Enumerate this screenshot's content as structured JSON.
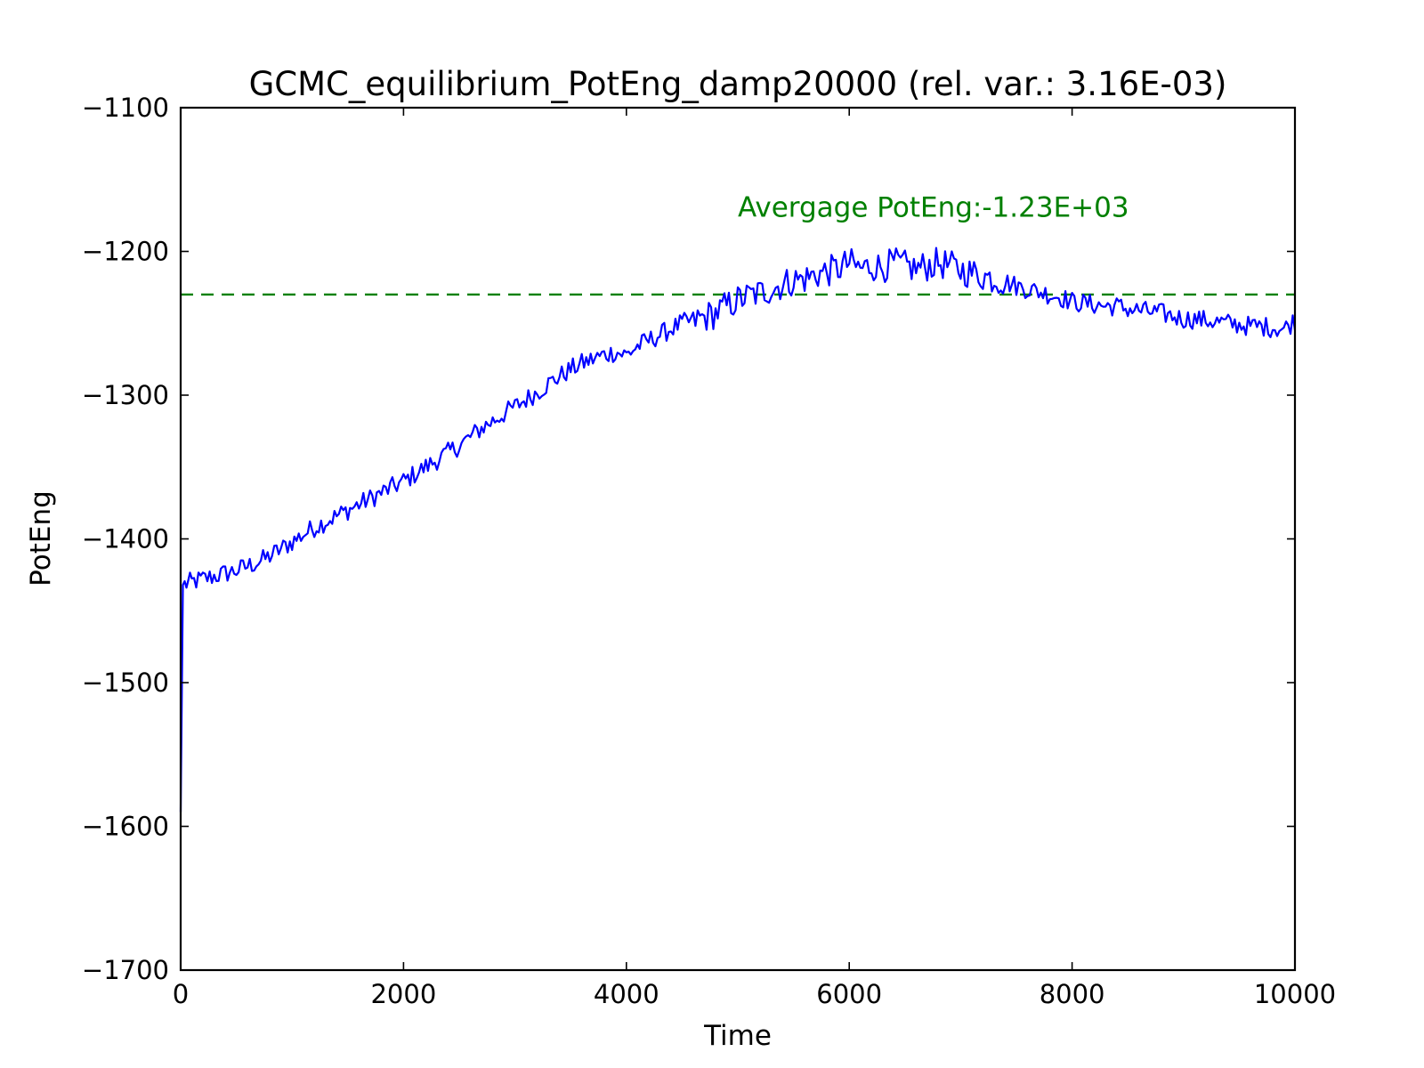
{
  "chart_data": {
    "type": "line",
    "title": "GCMC_equilibrium_PotEng_damp20000 (rel. var.: 3.16E-03)",
    "xlabel": "Time",
    "ylabel": "PotEng",
    "xlim": [
      0,
      10000
    ],
    "ylim": [
      -1700,
      -1100
    ],
    "xticks": [
      0,
      2000,
      4000,
      6000,
      8000,
      10000
    ],
    "yticks": [
      -1100,
      -1200,
      -1300,
      -1400,
      -1500,
      -1600,
      -1700
    ],
    "xtick_labels": [
      "0",
      "2000",
      "4000",
      "6000",
      "8000",
      "10000"
    ],
    "ytick_labels": [
      "−1100",
      "−1200",
      "−1300",
      "−1400",
      "−1500",
      "−1600",
      "−1700"
    ],
    "grid": false,
    "series": [
      {
        "color": "#0000ff",
        "x": [
          0,
          20,
          100,
          200,
          300,
          400,
          500,
          600,
          700,
          800,
          900,
          1000,
          1100,
          1200,
          1300,
          1400,
          1500,
          1600,
          1700,
          1800,
          1900,
          2000,
          2100,
          2200,
          2300,
          2400,
          2500,
          2600,
          2700,
          2800,
          2900,
          3000,
          3100,
          3200,
          3300,
          3400,
          3500,
          3600,
          3700,
          3800,
          3900,
          4000,
          4100,
          4200,
          4300,
          4400,
          4500,
          4600,
          4700,
          4800,
          4900,
          5000,
          5100,
          5200,
          5300,
          5400,
          5500,
          5600,
          5700,
          5800,
          5900,
          6000,
          6100,
          6200,
          6300,
          6400,
          6500,
          6600,
          6700,
          6800,
          6900,
          7000,
          7100,
          7200,
          7300,
          7400,
          7500,
          7600,
          7700,
          7800,
          7900,
          8000,
          8100,
          8200,
          8300,
          8400,
          8500,
          8600,
          8700,
          8800,
          8900,
          9000,
          9100,
          9200,
          9300,
          9400,
          9500,
          9600,
          9700,
          9800,
          9900,
          10000
        ],
        "y": [
          -1590,
          -1432,
          -1430,
          -1428,
          -1426,
          -1424,
          -1422,
          -1419,
          -1416,
          -1412,
          -1407,
          -1402,
          -1397,
          -1392,
          -1388,
          -1384,
          -1380,
          -1376,
          -1372,
          -1368,
          -1364,
          -1360,
          -1355,
          -1350,
          -1345,
          -1340,
          -1335,
          -1329,
          -1323,
          -1318,
          -1313,
          -1308,
          -1303,
          -1298,
          -1292,
          -1287,
          -1282,
          -1278,
          -1275,
          -1272,
          -1270,
          -1272,
          -1266,
          -1262,
          -1258,
          -1254,
          -1250,
          -1248,
          -1246,
          -1243,
          -1238,
          -1234,
          -1231,
          -1229,
          -1226,
          -1223,
          -1220,
          -1219,
          -1216,
          -1214,
          -1212,
          -1208,
          -1212,
          -1210,
          -1211,
          -1208,
          -1210,
          -1212,
          -1210,
          -1208,
          -1210,
          -1213,
          -1215,
          -1217,
          -1219,
          -1221,
          -1224,
          -1226,
          -1228,
          -1230,
          -1232,
          -1235,
          -1236,
          -1237,
          -1238,
          -1238,
          -1240,
          -1241,
          -1242,
          -1243,
          -1245,
          -1247,
          -1247,
          -1248,
          -1249,
          -1250,
          -1251,
          -1252,
          -1252,
          -1253,
          -1254,
          -1248
        ]
      },
      {
        "color": "#008000",
        "x": [
          0,
          10000
        ],
        "y": [
          -1230,
          -1230
        ]
      }
    ],
    "annotations": [
      {
        "text": "Avergage PotEng:-1.23E+03",
        "x": 5000,
        "y": -1176,
        "color": "#008000"
      }
    ]
  }
}
